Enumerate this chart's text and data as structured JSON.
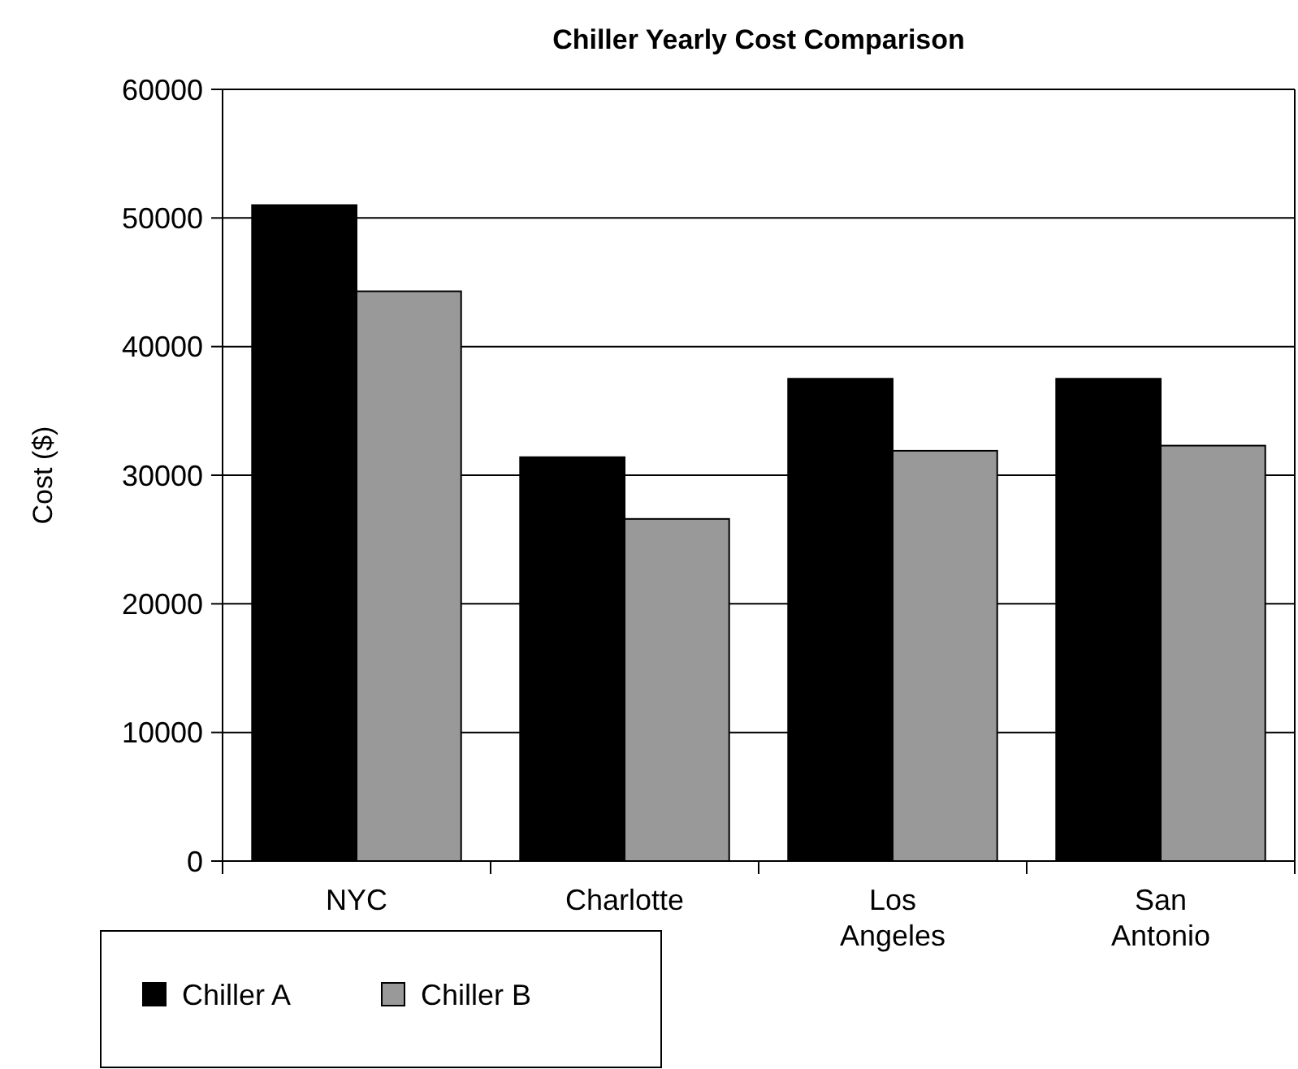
{
  "chart_data": {
    "type": "bar",
    "title": "Chiller Yearly Cost Comparison",
    "ylabel": "Cost ($)",
    "categories": [
      "NYC",
      "Charlotte",
      "Los Angeles",
      "San Antonio"
    ],
    "series": [
      {
        "name": "Chiller A",
        "color": "#000000",
        "values": [
          51000,
          31400,
          37500,
          37500
        ]
      },
      {
        "name": "Chiller B",
        "color": "#999999",
        "values": [
          44300,
          26600,
          31900,
          32300
        ]
      }
    ],
    "ylim": [
      0,
      60000
    ],
    "yticks": [
      0,
      10000,
      20000,
      30000,
      40000,
      50000,
      60000
    ],
    "grid": "y",
    "legend": "bottom left"
  }
}
